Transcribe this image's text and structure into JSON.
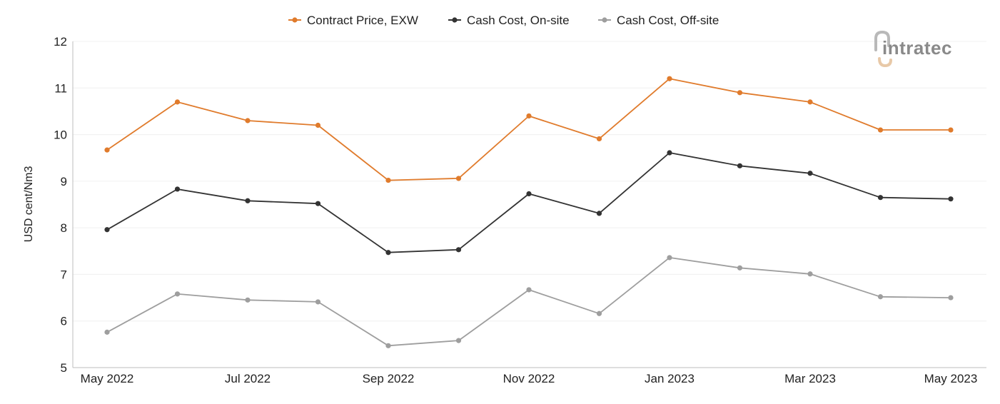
{
  "logo": {
    "text": "intratec"
  },
  "chart_data": {
    "type": "line",
    "title": "",
    "xlabel": "",
    "ylabel": "USD cent/Nm3",
    "ylim": [
      5,
      12
    ],
    "yticks": [
      5,
      6,
      7,
      8,
      9,
      10,
      11,
      12
    ],
    "grid": "horizontal",
    "legend_position": "top-center",
    "categories": [
      "May 2022",
      "Jun 2022",
      "Jul 2022",
      "Aug 2022",
      "Sep 2022",
      "Oct 2022",
      "Nov 2022",
      "Dec 2022",
      "Jan 2023",
      "Feb 2023",
      "Mar 2023",
      "Apr 2023",
      "May 2023"
    ],
    "tick_labels": [
      "May 2022",
      "",
      "Jul 2022",
      "",
      "Sep 2022",
      "",
      "Nov 2022",
      "",
      "Jan 2023",
      "",
      "Mar 2023",
      "",
      "May 2023"
    ],
    "series": [
      {
        "name": "Contract Price, EXW",
        "color": "#e07b2c",
        "values": [
          9.67,
          10.7,
          10.3,
          10.2,
          9.02,
          9.06,
          10.4,
          9.91,
          11.2,
          10.9,
          10.7,
          10.1,
          10.1
        ]
      },
      {
        "name": "Cash Cost, On-site",
        "color": "#333333",
        "values": [
          7.96,
          8.83,
          8.58,
          8.52,
          7.47,
          7.53,
          8.73,
          8.31,
          9.61,
          9.33,
          9.17,
          8.65,
          8.62
        ]
      },
      {
        "name": "Cash Cost, Off-site",
        "color": "#9e9e9e",
        "values": [
          5.76,
          6.58,
          6.45,
          6.41,
          5.47,
          5.58,
          6.67,
          6.16,
          7.36,
          7.14,
          7.01,
          6.52,
          6.5
        ]
      }
    ]
  }
}
